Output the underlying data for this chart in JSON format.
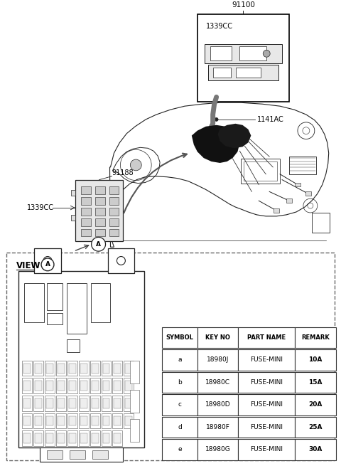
{
  "bg_color": "#ffffff",
  "fig_width": 4.8,
  "fig_height": 6.55,
  "dpi": 100,
  "lc": "#222222",
  "tc": "#000000",
  "labels": {
    "part_91100": "91100",
    "part_1339CC_top": "1339CC",
    "part_1141AC": "1141AC",
    "part_91188": "91188",
    "part_1339CC_left": "1339CC"
  },
  "table_headers": [
    "SYMBOL",
    "KEY NO",
    "PART NAME",
    "REMARK"
  ],
  "table_rows": [
    [
      "a",
      "18980J",
      "FUSE-MINI",
      "10A"
    ],
    [
      "b",
      "18980C",
      "FUSE-MINI",
      "15A"
    ],
    [
      "c",
      "18980D",
      "FUSE-MINI",
      "20A"
    ],
    [
      "d",
      "18980F",
      "FUSE-MINI",
      "25A"
    ],
    [
      "e",
      "18980G",
      "FUSE-MINI",
      "30A"
    ]
  ]
}
